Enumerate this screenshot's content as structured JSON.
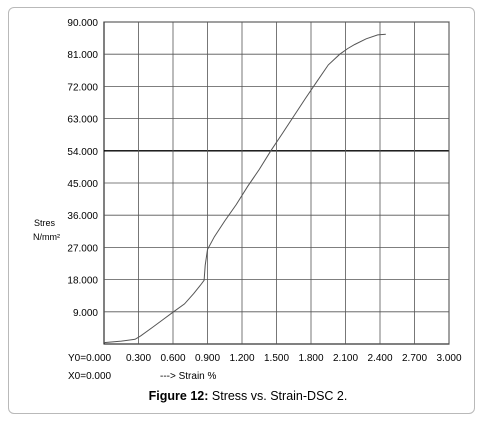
{
  "chart_data": {
    "type": "line",
    "ylabel_line1": "Stres",
    "ylabel_line2": "N/mm²",
    "xlabel": "---> Strain %",
    "origin_y_label": "Y0=0.000",
    "origin_x_label": "X0=0.000",
    "xlim": [
      0,
      3.0
    ],
    "ylim": [
      0,
      90
    ],
    "x_ticks": [
      "0.300",
      "0.600",
      "0.900",
      "1.200",
      "1.500",
      "1.800",
      "2.100",
      "2.400",
      "2.700",
      "3.000"
    ],
    "x_tick_values": [
      0.3,
      0.6,
      0.9,
      1.2,
      1.5,
      1.8,
      2.1,
      2.4,
      2.7,
      3.0
    ],
    "y_ticks": [
      "9.000",
      "18.000",
      "27.000",
      "36.000",
      "45.000",
      "54.000",
      "63.000",
      "72.000",
      "81.000",
      "90.000"
    ],
    "y_tick_values": [
      9,
      18,
      27,
      36,
      45,
      54,
      63,
      72,
      81,
      90
    ],
    "grid": true,
    "highlight_y": 54,
    "series": [
      {
        "color": "#555555",
        "x": [
          0.0,
          0.15,
          0.27,
          0.32,
          0.42,
          0.52,
          0.6,
          0.7,
          0.78,
          0.84,
          0.87,
          0.88,
          0.9,
          0.96,
          1.05,
          1.15,
          1.25,
          1.35,
          1.45,
          1.55,
          1.65,
          1.75,
          1.85,
          1.95,
          2.05,
          2.12,
          2.18,
          2.28,
          2.38,
          2.45
        ],
        "y": [
          0.4,
          0.8,
          1.3,
          2.3,
          4.6,
          7.0,
          8.9,
          11.2,
          14.1,
          16.5,
          17.8,
          22.0,
          26.4,
          30.0,
          34.4,
          39.0,
          44.1,
          48.8,
          54.0,
          58.8,
          63.7,
          68.6,
          73.3,
          78.0,
          81.0,
          82.6,
          83.7,
          85.3,
          86.4,
          86.6
        ]
      }
    ]
  },
  "caption": {
    "bold": "Figure 12:",
    "text": " Stress vs. Strain-DSC 2."
  }
}
